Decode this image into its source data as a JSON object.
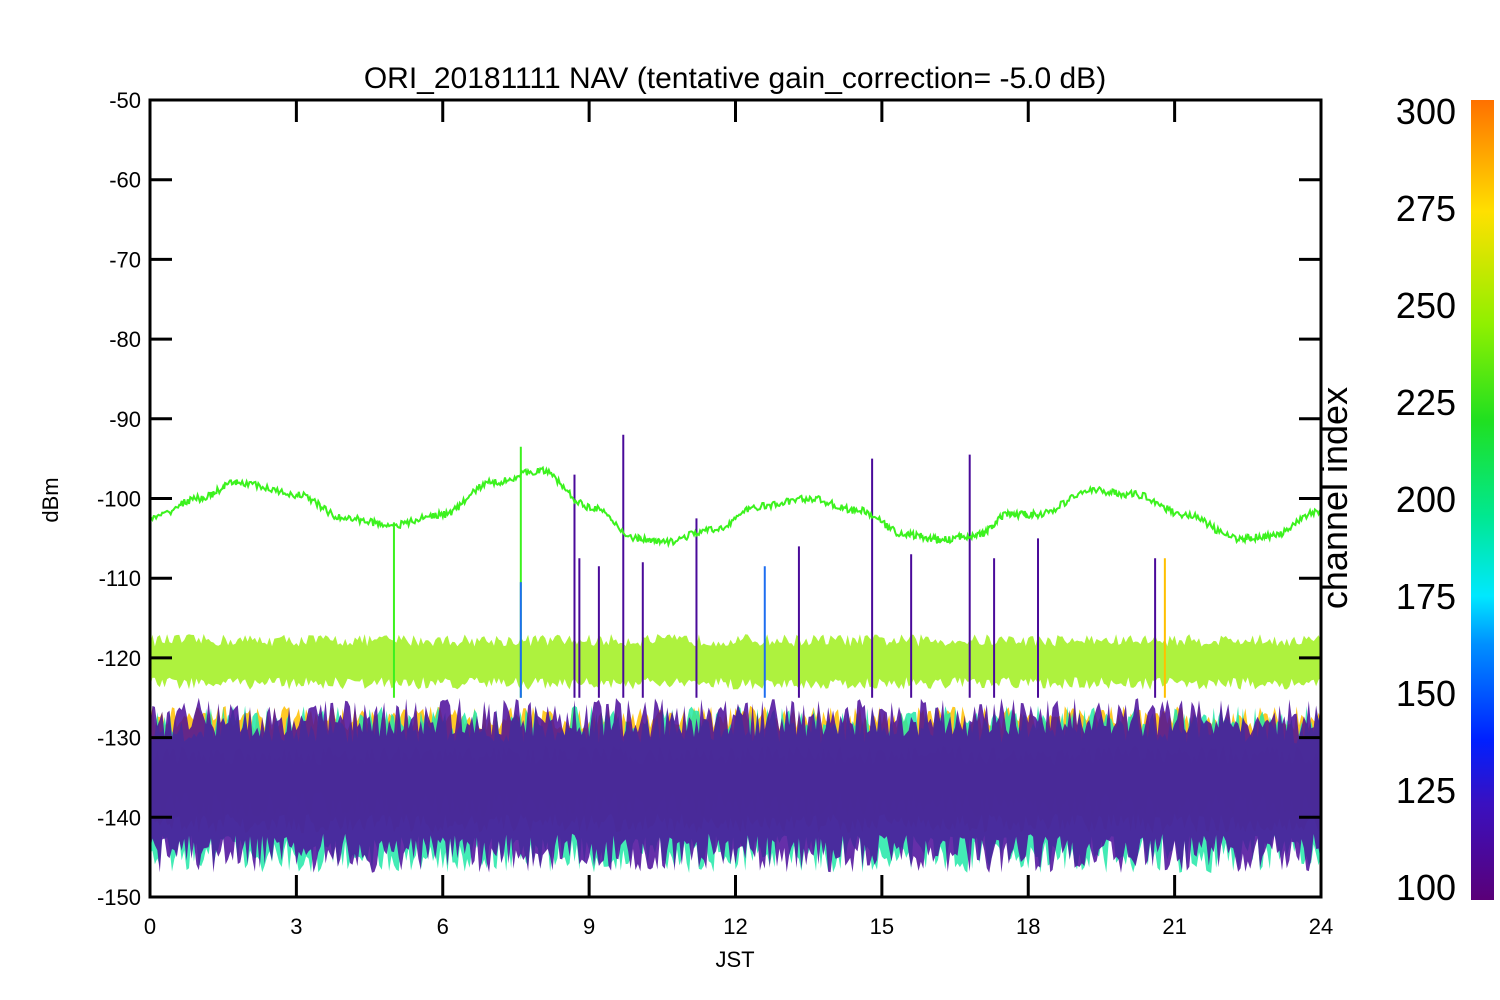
{
  "chart_data": {
    "type": "line",
    "title": "ORI_20181111 NAV (tentative gain_correction= -5.0 dB)",
    "xlabel": "JST",
    "ylabel": "dBm",
    "xlim": [
      0,
      24
    ],
    "ylim": [
      -150,
      -50
    ],
    "x_ticks": [
      "0",
      "3",
      "6",
      "9",
      "12",
      "15",
      "18",
      "21",
      "24"
    ],
    "y_ticks": [
      "-50",
      "-60",
      "-70",
      "-80",
      "-90",
      "-100",
      "-110",
      "-120",
      "-130",
      "-140",
      "-150"
    ],
    "colorbar": {
      "label": "channel index",
      "range": [
        100,
        300
      ],
      "ticks": [
        "100",
        "125",
        "150",
        "175",
        "200",
        "225",
        "250",
        "275",
        "300"
      ]
    },
    "series": [
      {
        "channel": 240,
        "color": "#3cf21e",
        "x": [
          0,
          1,
          1.8,
          3,
          4,
          5,
          6,
          7,
          8,
          9,
          10,
          10.5,
          11.5,
          12.5,
          13.5,
          14.5,
          15.5,
          16.2,
          17,
          17.6,
          18.2,
          19.3,
          20.2,
          21.2,
          22.3,
          23,
          24
        ],
        "y": [
          -102.5,
          -100,
          -98,
          -99.5,
          -102.5,
          -103.3,
          -102,
          -98,
          -96.5,
          -101,
          -105,
          -105.5,
          -104,
          -101,
          -100,
          -101.5,
          -104.5,
          -105.2,
          -104.5,
          -102,
          -102,
          -99,
          -99.5,
          -102,
          -105,
          -104.7,
          -101.5
        ]
      },
      {
        "channel": 255,
        "color": "#a0f01c",
        "y_range": [
          -124,
          -117
        ]
      },
      {
        "channel": 275,
        "color": "#ffc000",
        "y_range": [
          -140,
          -126
        ]
      },
      {
        "channel": 295,
        "color": "#ff8c00",
        "y_range": [
          -142,
          -131
        ]
      },
      {
        "channel": 200,
        "color": "#22e8a8",
        "y_range": [
          -147,
          -126
        ]
      },
      {
        "channel": 120,
        "color": "#4a0a9a",
        "y_range": [
          -147,
          -125
        ]
      }
    ],
    "spikes": [
      {
        "x": 5.0,
        "y": -103,
        "color": "#3cf21e"
      },
      {
        "x": 7.6,
        "y": -93.5,
        "color": "#3cf21e"
      },
      {
        "x": 7.6,
        "y": -110.5,
        "color": "#1e6ef0"
      },
      {
        "x": 8.7,
        "y": -97,
        "color": "#4a0a9a"
      },
      {
        "x": 8.8,
        "y": -107.5,
        "color": "#4a0a9a"
      },
      {
        "x": 9.2,
        "y": -108.5,
        "color": "#4a0a9a"
      },
      {
        "x": 9.7,
        "y": -92,
        "color": "#4a0a9a"
      },
      {
        "x": 10.1,
        "y": -108,
        "color": "#4a0a9a"
      },
      {
        "x": 11.2,
        "y": -102.5,
        "color": "#4a0a9a"
      },
      {
        "x": 12.6,
        "y": -108.5,
        "color": "#1e6ef0"
      },
      {
        "x": 13.3,
        "y": -106,
        "color": "#4a0a9a"
      },
      {
        "x": 14.8,
        "y": -95,
        "color": "#4a0a9a"
      },
      {
        "x": 15.6,
        "y": -107,
        "color": "#4a0a9a"
      },
      {
        "x": 16.8,
        "y": -94.5,
        "color": "#4a0a9a"
      },
      {
        "x": 17.3,
        "y": -107.5,
        "color": "#4a0a9a"
      },
      {
        "x": 18.2,
        "y": -105,
        "color": "#4a0a9a"
      },
      {
        "x": 20.6,
        "y": -107.5,
        "color": "#4a0a9a"
      },
      {
        "x": 20.8,
        "y": -107.5,
        "color": "#ffc000"
      }
    ]
  }
}
